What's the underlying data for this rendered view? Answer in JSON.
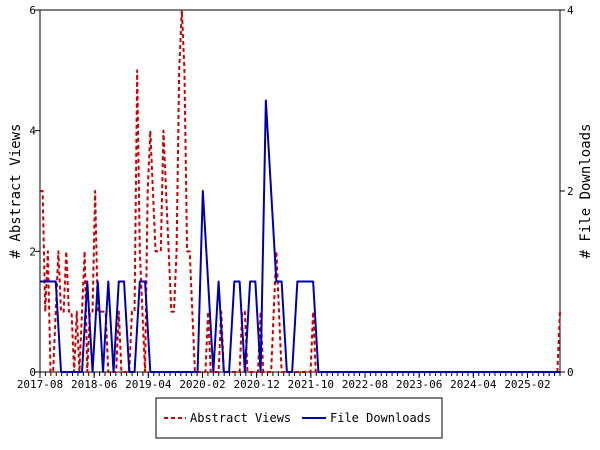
{
  "chart_data": {
    "type": "line",
    "title": "",
    "xlabel": "",
    "ylabel_left": "# Abstract Views",
    "ylabel_right": "# File Downloads",
    "x_tick_labels": [
      "2017-08",
      "2018-06",
      "2019-04",
      "2020-02",
      "2020-12",
      "2021-10",
      "2022-08",
      "2023-06",
      "2024-04",
      "2025-02"
    ],
    "x_month_range": [
      "2017-08",
      "2025-08"
    ],
    "ylim_left": [
      0,
      6
    ],
    "yticks_left": [
      0,
      2,
      4,
      6
    ],
    "ylim_right": [
      0,
      4
    ],
    "yticks_right": [
      0,
      2,
      4
    ],
    "grid": false,
    "legend_position": "bottom-center",
    "series": [
      {
        "name": "Abstract Views",
        "axis": "left",
        "color": "#cc0000",
        "style": "dashed",
        "values": [
          3,
          3,
          1,
          2,
          0,
          0,
          1,
          2,
          1,
          1,
          2,
          1,
          1,
          0,
          1,
          0,
          1,
          2,
          0,
          1,
          1,
          3,
          1,
          1,
          1,
          1,
          0,
          0,
          0,
          0,
          1,
          0,
          0,
          0,
          0,
          1,
          1,
          5,
          2,
          1,
          0,
          3,
          4,
          3,
          2,
          2,
          2,
          4,
          3,
          2,
          1,
          1,
          2,
          5,
          6,
          5,
          2,
          2,
          1,
          0,
          0,
          0,
          0,
          0,
          1,
          0,
          0,
          0,
          0,
          1,
          0,
          0,
          0,
          0,
          0,
          0,
          0,
          1,
          1,
          0,
          0,
          0,
          0,
          0,
          1,
          0,
          0,
          0,
          0,
          1,
          2,
          1,
          0,
          0,
          0,
          0,
          0,
          0,
          0,
          0,
          0,
          0,
          0,
          0,
          1,
          0,
          0,
          0,
          0,
          0,
          0,
          0,
          0,
          0,
          0,
          0,
          0,
          0,
          0,
          0,
          0,
          0,
          0,
          0,
          0,
          0,
          0,
          0,
          0,
          0,
          0,
          0,
          0,
          0,
          0,
          0,
          0,
          0,
          0,
          0,
          0,
          0,
          0,
          0,
          0,
          0,
          0,
          0,
          0,
          0,
          0,
          0,
          0,
          0,
          0,
          0,
          0,
          0,
          0,
          0,
          0,
          0,
          0,
          0,
          0,
          0,
          0,
          0,
          0,
          0,
          0,
          0,
          0,
          0,
          0,
          0,
          0,
          0,
          0,
          0,
          0,
          0,
          0,
          0,
          0,
          0,
          0,
          0,
          0,
          0,
          0,
          0,
          0,
          0,
          0,
          0,
          0,
          0,
          1
        ]
      },
      {
        "name": "File Downloads",
        "axis": "right",
        "color": "#0000aa",
        "style": "solid",
        "values": [
          1,
          1,
          1,
          1,
          0,
          0,
          0,
          0,
          0,
          1,
          0,
          1,
          0,
          1,
          0,
          1,
          1,
          0,
          0,
          1,
          1,
          0,
          0,
          0,
          0,
          0,
          0,
          0,
          0,
          0,
          0,
          2,
          1,
          0,
          1,
          0,
          0,
          1,
          1,
          0,
          1,
          1,
          0,
          3,
          2,
          1,
          1,
          0,
          0,
          1,
          1,
          1,
          1,
          0,
          0,
          0,
          0,
          0,
          0,
          0,
          0,
          0,
          0,
          0,
          0,
          0,
          0,
          0,
          0,
          0,
          0,
          0,
          0,
          0,
          0,
          0,
          0,
          0,
          0,
          0,
          0,
          0,
          0,
          0,
          0,
          0,
          0,
          0,
          0,
          0,
          0,
          0,
          0,
          0,
          0,
          0,
          0,
          0,
          0,
          0
        ]
      }
    ]
  }
}
